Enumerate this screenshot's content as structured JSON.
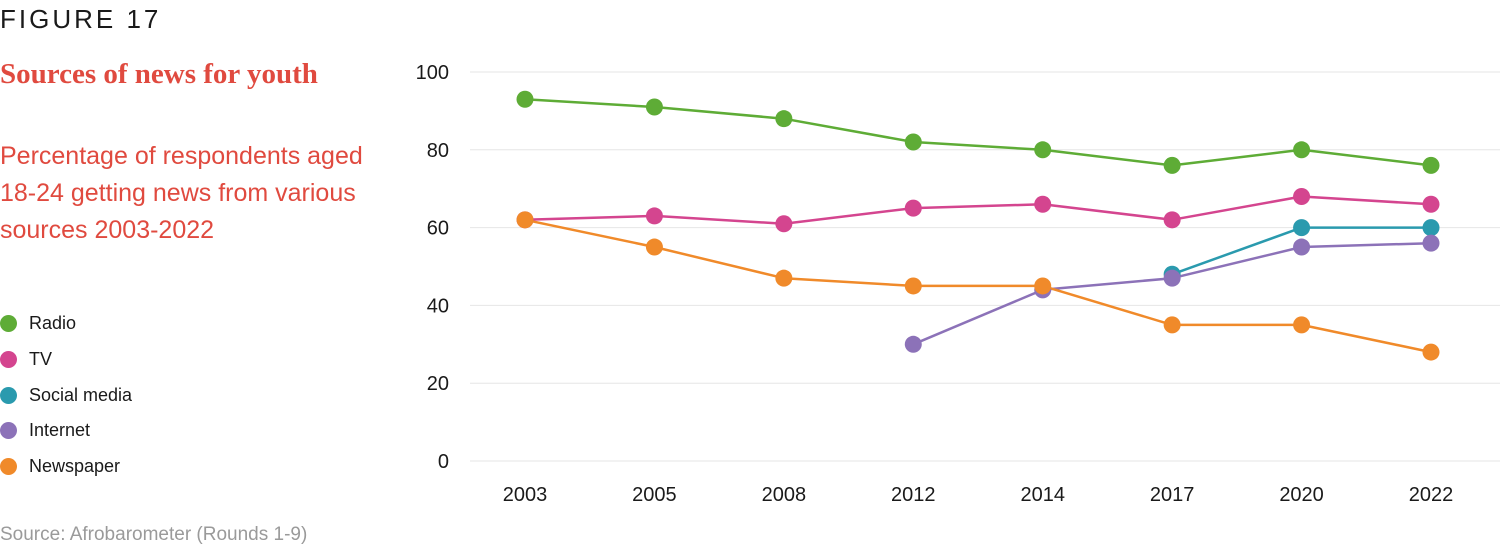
{
  "figure_label": "FIGURE 17",
  "chart_data": {
    "type": "line",
    "title": "Sources of news for youth",
    "subtitle": "Percentage of respondents aged 18-24 getting news from various sources 2003-2022",
    "source": "Source: Afrobarometer (Rounds 1-9)",
    "x": [
      "2003",
      "2005",
      "2008",
      "2012",
      "2014",
      "2017",
      "2020",
      "2022"
    ],
    "ylim": [
      0,
      100
    ],
    "yticks": [
      "0",
      "20",
      "40",
      "60",
      "80",
      "100"
    ],
    "grid": true,
    "legend_position": "left",
    "series": [
      {
        "name": "Radio",
        "color": "#5eac36",
        "values": [
          93,
          91,
          88,
          82,
          80,
          76,
          80,
          76
        ]
      },
      {
        "name": "TV",
        "color": "#d4458f",
        "values": [
          62,
          63,
          61,
          65,
          66,
          62,
          68,
          66
        ]
      },
      {
        "name": "Social media",
        "color": "#2a9aae",
        "values": [
          null,
          null,
          null,
          null,
          null,
          48,
          60,
          60
        ]
      },
      {
        "name": "Internet",
        "color": "#8c72b8",
        "values": [
          null,
          null,
          null,
          30,
          44,
          47,
          55,
          56
        ]
      },
      {
        "name": "Newspaper",
        "color": "#f08a2a",
        "values": [
          62,
          55,
          47,
          45,
          45,
          35,
          35,
          28
        ]
      }
    ]
  }
}
